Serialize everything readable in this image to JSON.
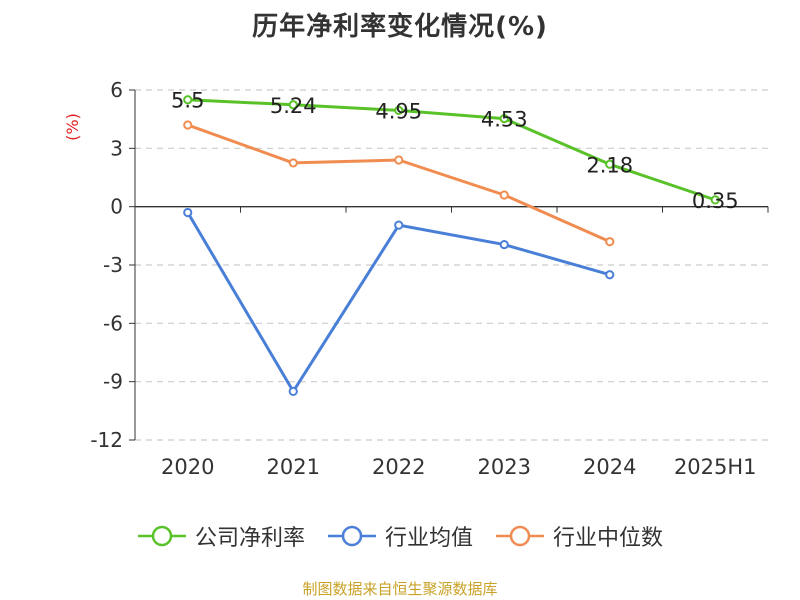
{
  "chart_data": {
    "type": "line",
    "title": "历年净利率变化情况(%)",
    "ylabel": "(%)",
    "xlabel": "",
    "categories": [
      "2020",
      "2021",
      "2022",
      "2023",
      "2024",
      "2025H1"
    ],
    "ylim": [
      -12,
      6
    ],
    "yticks": [
      6,
      3,
      0,
      -3,
      -6,
      -9,
      -12
    ],
    "grid": true,
    "legend_position": "bottom",
    "series": [
      {
        "name": "公司净利率",
        "color": "#5ac229",
        "values": [
          5.5,
          5.24,
          4.95,
          4.53,
          2.18,
          0.35
        ],
        "labels": [
          "5.5",
          "5.24",
          "4.95",
          "4.53",
          "2.18",
          "0.35"
        ]
      },
      {
        "name": "行业均值",
        "color": "#4a7fd8",
        "values": [
          -0.3,
          -9.5,
          -0.95,
          -1.95,
          -3.5,
          null
        ]
      },
      {
        "name": "行业中位数",
        "color": "#f08c50",
        "values": [
          4.2,
          2.25,
          2.4,
          0.6,
          -1.8,
          null
        ]
      }
    ]
  },
  "footer": {
    "source": "制图数据来自恒生聚源数据库"
  }
}
